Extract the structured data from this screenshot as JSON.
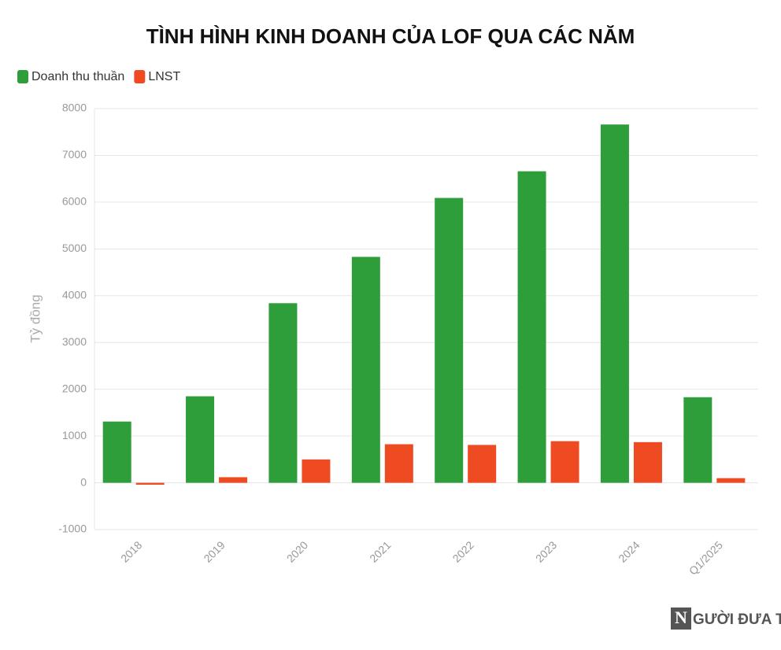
{
  "chart_data": {
    "type": "bar",
    "title": "TÌNH HÌNH KINH DOANH CỦA LOF QUA CÁC NĂM",
    "y_label": "Tỷ đồng",
    "categories": [
      "2018",
      "2019",
      "2020",
      "2021",
      "2022",
      "2023",
      "2024",
      "Q1/2025"
    ],
    "series": [
      {
        "name": "Doanh thu thuần",
        "color": "#2e9e3a",
        "values": [
          1310,
          1850,
          3840,
          4830,
          6090,
          6660,
          7660,
          1830
        ]
      },
      {
        "name": "LNST",
        "color": "#ee4b22",
        "values": [
          -40,
          120,
          500,
          825,
          810,
          890,
          870,
          100
        ]
      }
    ],
    "ylim": [
      -1000,
      8000
    ],
    "yticks": [
      -1000,
      0,
      1000,
      2000,
      3000,
      4000,
      5000,
      6000,
      7000,
      8000
    ],
    "grid": true,
    "legend": "top-left"
  },
  "watermark": {
    "initial": "N",
    "text": "GƯỜI ĐƯA TIN"
  }
}
